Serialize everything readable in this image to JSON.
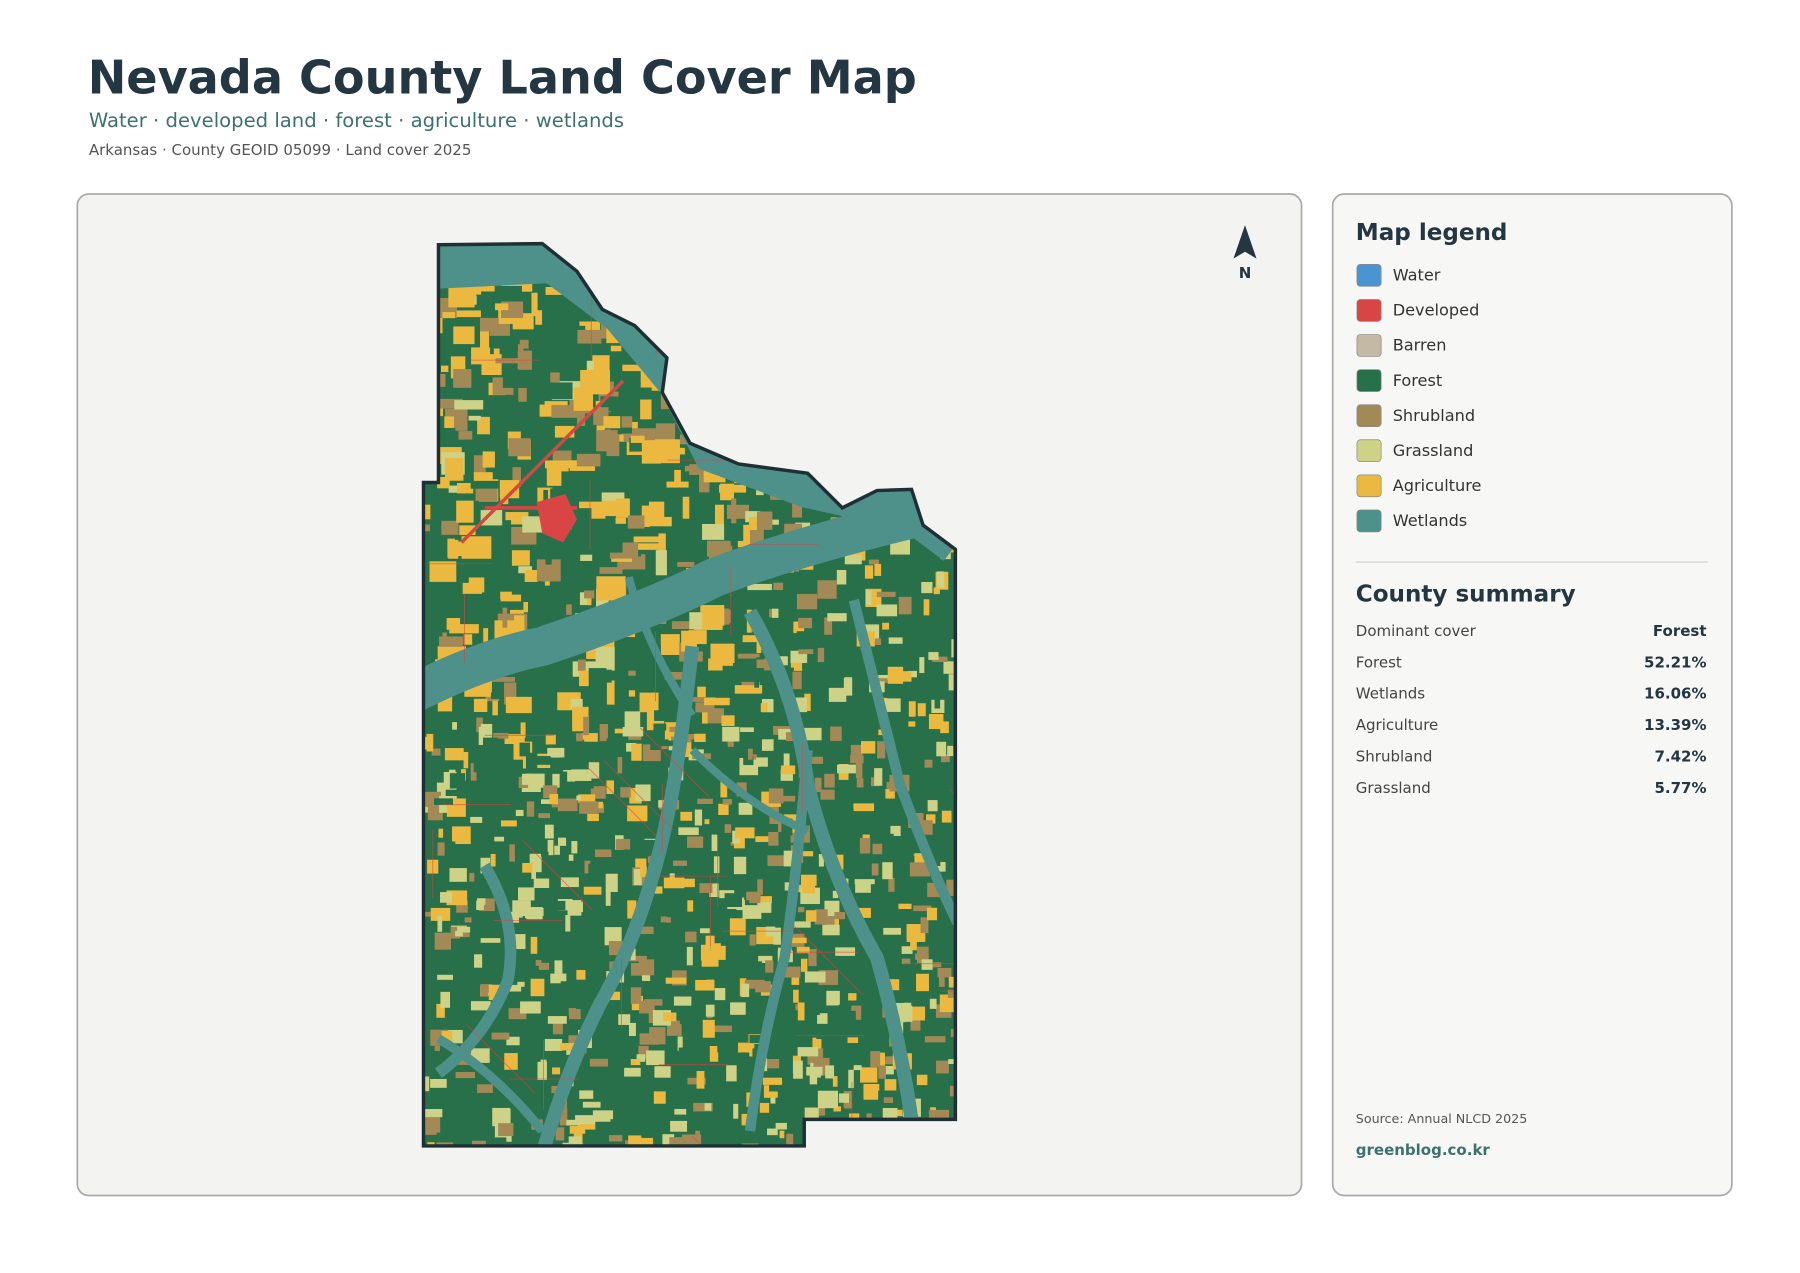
{
  "header": {
    "title": "Nevada County Land Cover Map",
    "subtitle": "Water · developed land · forest · agriculture · wetlands",
    "meta": "Arkansas · County GEOID 05099 · Land cover 2025"
  },
  "map": {
    "north": "N"
  },
  "legend": {
    "title": "Map legend",
    "items": [
      {
        "name": "Water",
        "color": "#4a94d4"
      },
      {
        "name": "Developed",
        "color": "#d94545"
      },
      {
        "name": "Barren",
        "color": "#c3b9a4"
      },
      {
        "name": "Forest",
        "color": "#27704a"
      },
      {
        "name": "Shrubland",
        "color": "#a28955"
      },
      {
        "name": "Grassland",
        "color": "#cdd286"
      },
      {
        "name": "Agriculture",
        "color": "#ecb940"
      },
      {
        "name": "Wetlands",
        "color": "#4e918a"
      }
    ]
  },
  "summary": {
    "title": "County summary",
    "rows": [
      [
        "Dominant cover",
        "Forest"
      ],
      [
        "Forest",
        "52.21%"
      ],
      [
        "Wetlands",
        "16.06%"
      ],
      [
        "Agriculture",
        "13.39%"
      ],
      [
        "Shrubland",
        "7.42%"
      ],
      [
        "Grassland",
        "5.77%"
      ]
    ]
  },
  "footer": {
    "source": "Source: Annual NLCD 2025",
    "site": "greenblog.co.kr"
  }
}
